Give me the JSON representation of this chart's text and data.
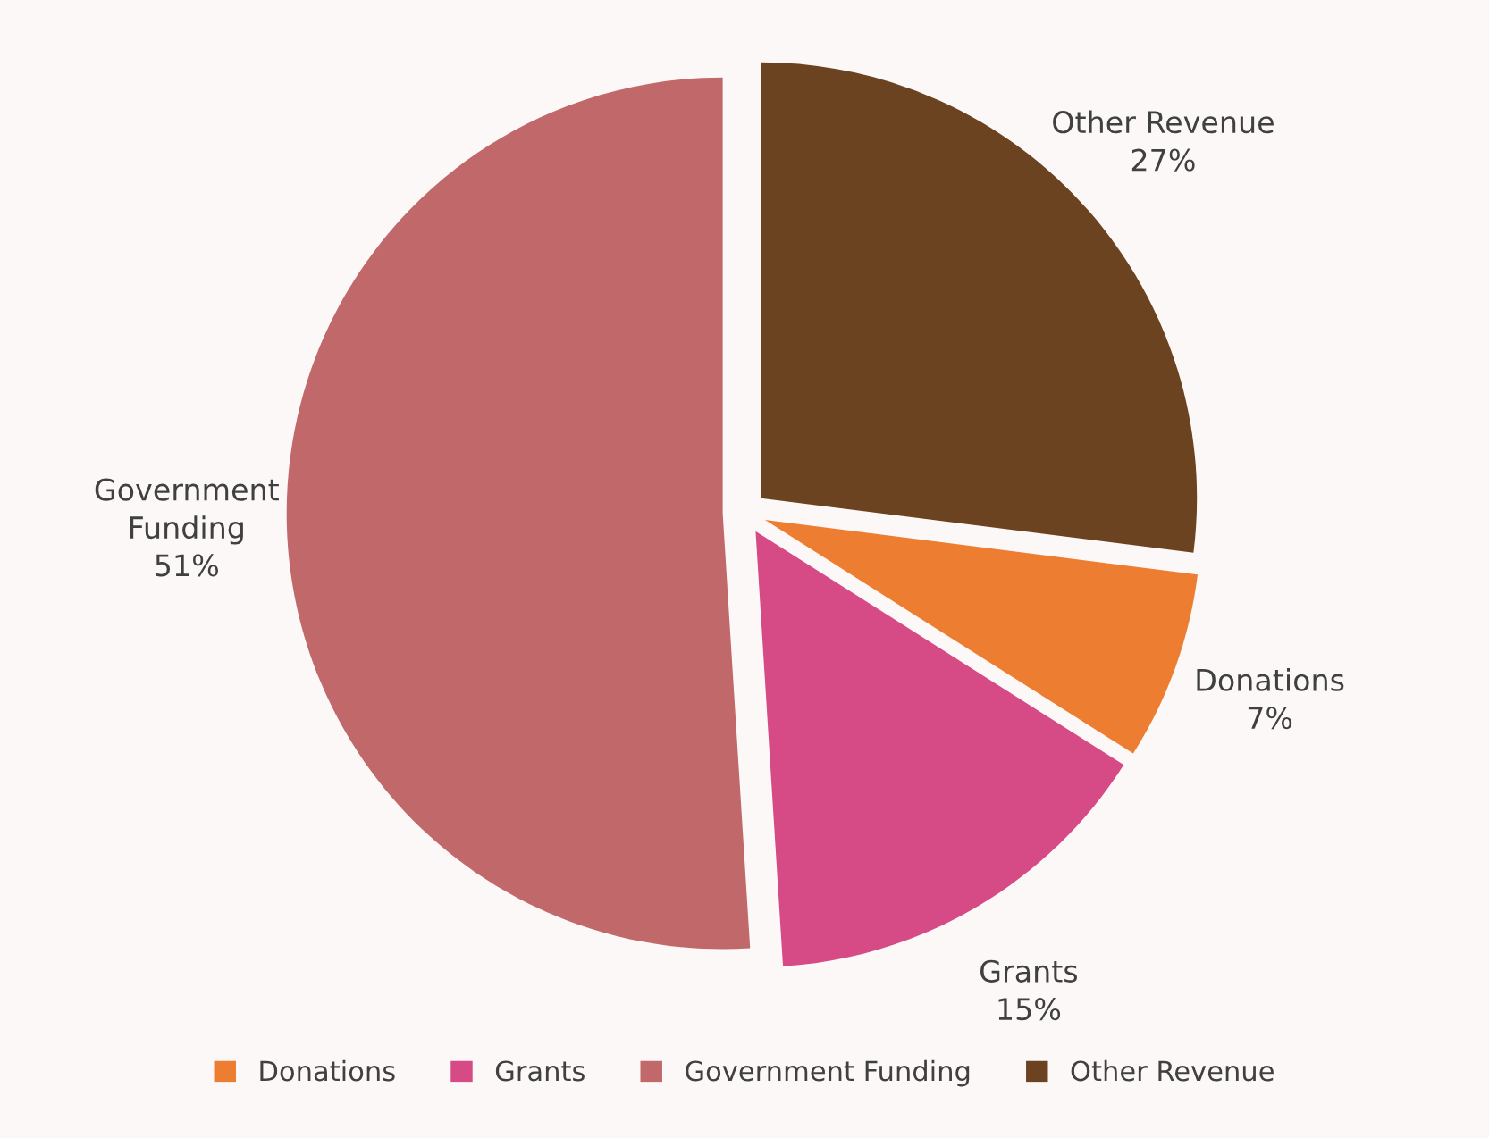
{
  "chart_data": {
    "type": "pie",
    "categories": [
      "Donations",
      "Grants",
      "Government Funding",
      "Other Revenue"
    ],
    "values": [
      7,
      15,
      51,
      27
    ],
    "colors": [
      "#ed7d31",
      "#d64b85",
      "#c0686a",
      "#6b4320"
    ],
    "value_labels": [
      "7%",
      "15%",
      "51%",
      "27%"
    ],
    "legend": "bottom"
  }
}
